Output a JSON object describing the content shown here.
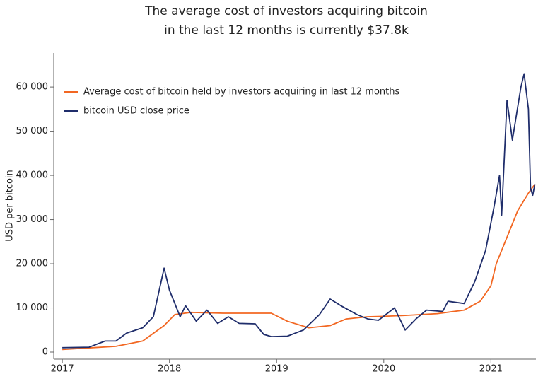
{
  "chart_data": {
    "type": "line",
    "title": [
      "The average cost of investors acquiring bitcoin",
      "in the last 12 months is currently $37.8k"
    ],
    "y_label": "USD per bitcoin",
    "legend": "top-left",
    "xlim": [
      2016.92,
      2021.42
    ],
    "xticks": [
      2017,
      2018,
      2019,
      2020,
      2021
    ],
    "ylim": [
      -1600,
      67700
    ],
    "yticks": [
      0,
      {
        "value": 10000,
        "label": "10 000"
      },
      {
        "value": 20000,
        "label": "20 000"
      },
      {
        "value": 30000,
        "label": "30 000"
      },
      {
        "value": 40000,
        "label": "40 000"
      },
      {
        "value": 50000,
        "label": "50 000"
      },
      {
        "value": 60000,
        "label": "60 000"
      }
    ],
    "series": [
      {
        "name": "Average cost of bitcoin held by investors acquiring in last 12 months",
        "color": "#f26722",
        "x": [
          2017.0,
          2017.5,
          2017.75,
          2017.95,
          2018.05,
          2018.2,
          2018.5,
          2018.95,
          2019.1,
          2019.3,
          2019.5,
          2019.65,
          2019.85,
          2020.0,
          2020.2,
          2020.5,
          2020.75,
          2020.9,
          2021.0,
          2021.05,
          2021.15,
          2021.25,
          2021.35,
          2021.41
        ],
        "values": [
          600,
          1300,
          2500,
          6000,
          8500,
          9000,
          8800,
          8800,
          7000,
          5500,
          6000,
          7500,
          8000,
          8100,
          8300,
          8700,
          9500,
          11500,
          15000,
          20000,
          26000,
          32000,
          36000,
          38000
        ]
      },
      {
        "name": "bitcoin USD close price",
        "color": "#1f2d6b",
        "x": [
          2017.0,
          2017.25,
          2017.4,
          2017.5,
          2017.6,
          2017.75,
          2017.85,
          2017.95,
          2018.0,
          2018.05,
          2018.1,
          2018.15,
          2018.25,
          2018.35,
          2018.45,
          2018.55,
          2018.65,
          2018.8,
          2018.88,
          2018.95,
          2019.1,
          2019.25,
          2019.4,
          2019.5,
          2019.6,
          2019.75,
          2019.85,
          2019.95,
          2020.1,
          2020.2,
          2020.3,
          2020.4,
          2020.55,
          2020.6,
          2020.75,
          2020.85,
          2020.95,
          2021.03,
          2021.08,
          2021.1,
          2021.15,
          2021.2,
          2021.28,
          2021.31,
          2021.35,
          2021.37,
          2021.39,
          2021.41
        ],
        "values": [
          1000,
          1100,
          2500,
          2500,
          4300,
          5500,
          8000,
          19000,
          14000,
          11000,
          8000,
          10500,
          7000,
          9500,
          6500,
          8000,
          6500,
          6400,
          4000,
          3500,
          3600,
          5000,
          8500,
          12000,
          10500,
          8500,
          7500,
          7200,
          10000,
          5000,
          7500,
          9500,
          9200,
          11500,
          11000,
          16000,
          23000,
          33000,
          40000,
          31000,
          57000,
          48000,
          60000,
          63000,
          55000,
          37000,
          35500,
          38000
        ]
      }
    ]
  }
}
